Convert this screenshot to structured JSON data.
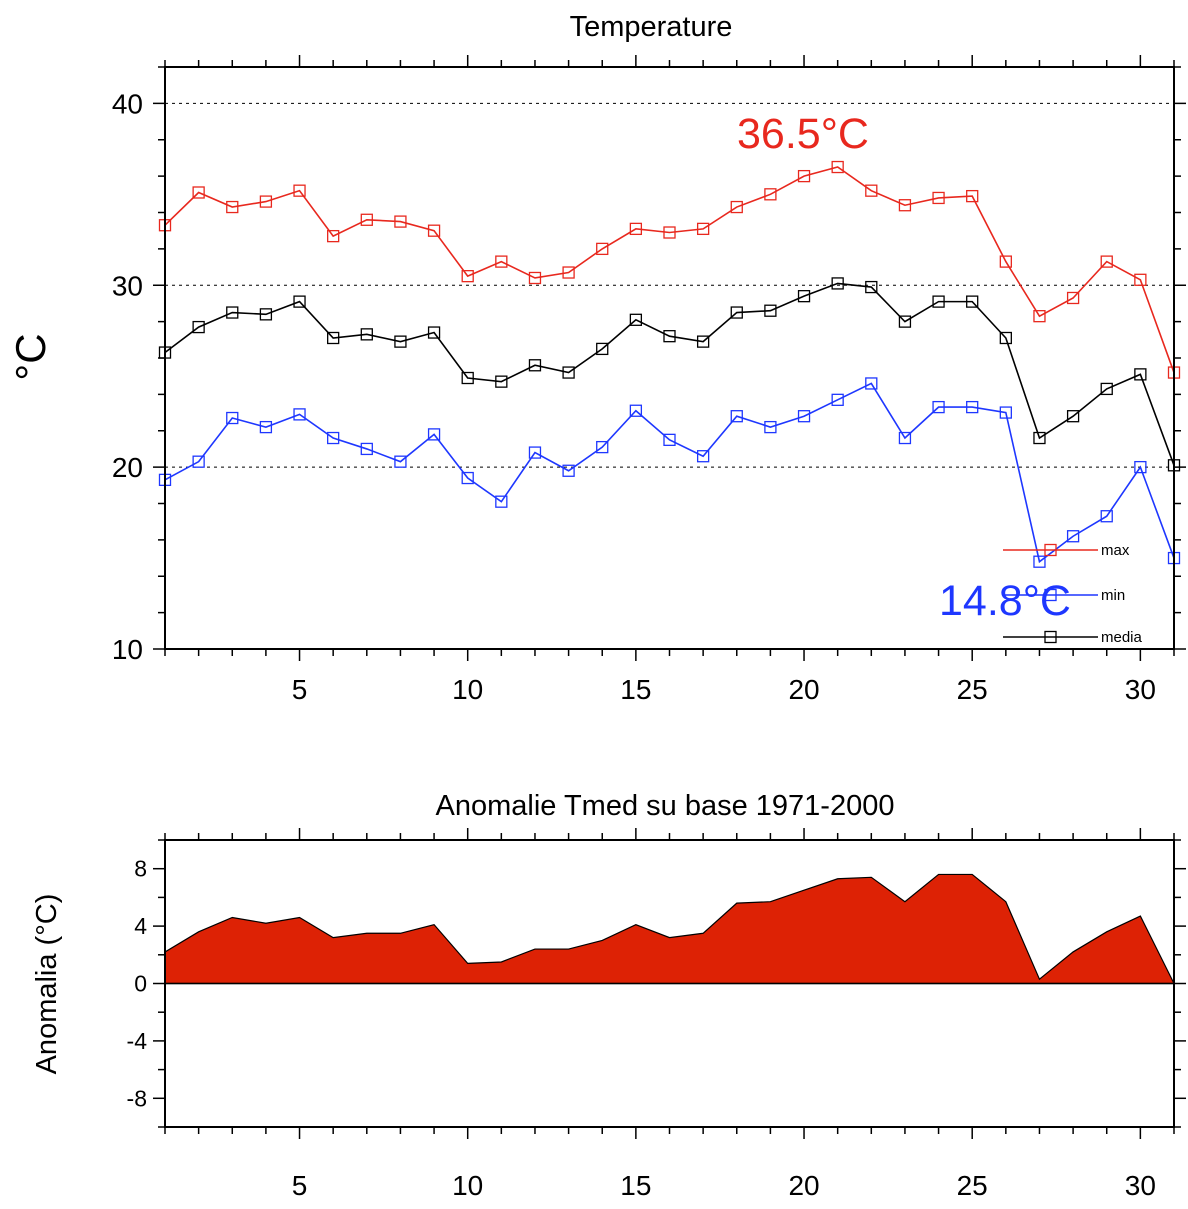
{
  "colors": {
    "max": "#e8281e",
    "min": "#1e37ff",
    "media": "#000000",
    "anomaly": "#dd2205"
  },
  "chart_data": [
    {
      "type": "line",
      "title": "Temperature",
      "xlabel": "",
      "ylabel": "°C",
      "xlim": [
        1,
        31
      ],
      "ylim": [
        10,
        42
      ],
      "xticks": [
        5,
        10,
        15,
        20,
        25,
        30
      ],
      "yticks": [
        10,
        20,
        30,
        40
      ],
      "grid": "dashed horizontal at 20, 30, 40",
      "legend_position": "bottom-right",
      "x": [
        1,
        2,
        3,
        4,
        5,
        6,
        7,
        8,
        9,
        10,
        11,
        12,
        13,
        14,
        15,
        16,
        17,
        18,
        19,
        20,
        21,
        22,
        23,
        24,
        25,
        26,
        27,
        28,
        29,
        30,
        31
      ],
      "series": [
        {
          "name": "max",
          "color": "#e8281e",
          "values": [
            33.3,
            35.1,
            34.3,
            34.6,
            35.2,
            32.7,
            33.6,
            33.5,
            33.0,
            30.5,
            31.3,
            30.4,
            30.7,
            32.0,
            33.1,
            32.9,
            33.1,
            34.3,
            35.0,
            36.0,
            36.5,
            35.2,
            34.4,
            34.8,
            34.9,
            31.3,
            28.3,
            29.3,
            31.3,
            30.3,
            25.2
          ]
        },
        {
          "name": "min",
          "color": "#1e37ff",
          "values": [
            19.3,
            20.3,
            22.7,
            22.2,
            22.9,
            21.6,
            21.0,
            20.3,
            21.8,
            19.4,
            18.1,
            20.8,
            19.8,
            21.1,
            23.1,
            21.5,
            20.6,
            22.8,
            22.2,
            22.8,
            23.7,
            24.6,
            21.6,
            23.3,
            23.3,
            23.0,
            14.8,
            16.2,
            17.3,
            20.0,
            15.0
          ]
        },
        {
          "name": "media",
          "color": "#000000",
          "values": [
            26.3,
            27.7,
            28.5,
            28.4,
            29.1,
            27.1,
            27.3,
            26.9,
            27.4,
            24.9,
            24.7,
            25.6,
            25.2,
            26.5,
            28.1,
            27.2,
            26.9,
            28.5,
            28.6,
            29.4,
            30.1,
            29.9,
            28.0,
            29.1,
            29.1,
            27.1,
            21.6,
            22.8,
            24.3,
            25.1,
            20.1
          ]
        }
      ],
      "annotations": [
        {
          "text": "36.5°C",
          "color": "#e8281e"
        },
        {
          "text": "14.8°C",
          "color": "#1e37ff"
        }
      ]
    },
    {
      "type": "area",
      "title": "Anomalie Tmed su base 1971-2000",
      "xlabel": "",
      "ylabel": "Anomalia (°C)",
      "xlim": [
        1,
        31
      ],
      "ylim": [
        -10,
        10
      ],
      "xticks": [
        5,
        10,
        15,
        20,
        25,
        30
      ],
      "yticks": [
        -8,
        -4,
        0,
        4,
        8
      ],
      "x": [
        1,
        2,
        3,
        4,
        5,
        6,
        7,
        8,
        9,
        10,
        11,
        12,
        13,
        14,
        15,
        16,
        17,
        18,
        19,
        20,
        21,
        22,
        23,
        24,
        25,
        26,
        27,
        28,
        29,
        30,
        31
      ],
      "series": [
        {
          "name": "",
          "color": "#dd2205",
          "values": [
            2.2,
            3.6,
            4.6,
            4.2,
            4.6,
            3.2,
            3.5,
            3.5,
            4.1,
            1.4,
            1.5,
            2.4,
            2.4,
            3.0,
            4.1,
            3.2,
            3.5,
            5.6,
            5.7,
            6.5,
            7.3,
            7.4,
            5.7,
            7.6,
            7.6,
            5.7,
            0.3,
            2.2,
            3.6,
            4.7,
            0.0
          ]
        }
      ]
    }
  ]
}
